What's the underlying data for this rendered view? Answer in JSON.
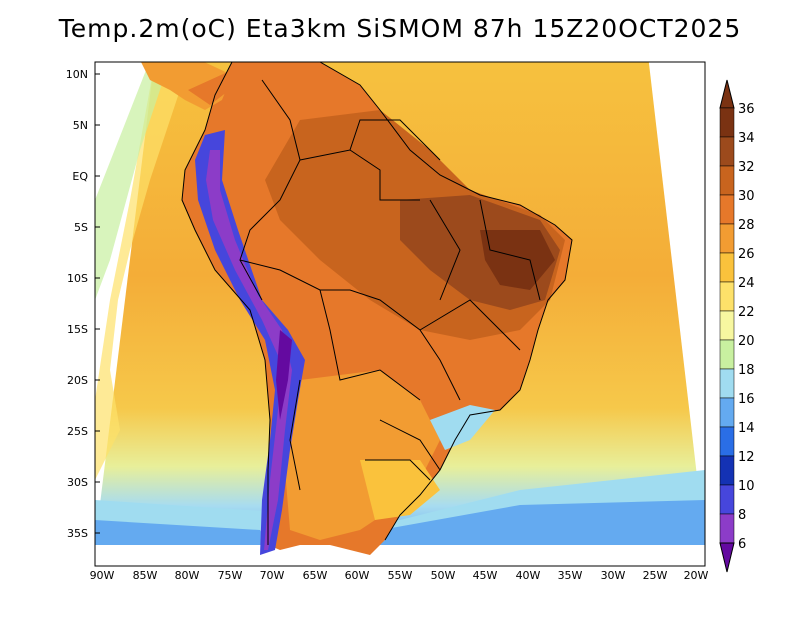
{
  "title": "Temp.2m(oC) Eta3km SiSMOM 87h 15Z20OCT2025",
  "lat_labels": [
    "10N",
    "5N",
    "EQ",
    "5S",
    "10S",
    "15S",
    "20S",
    "25S",
    "30S",
    "35S"
  ],
  "lon_labels": [
    "90W",
    "85W",
    "80W",
    "75W",
    "70W",
    "65W",
    "60W",
    "55W",
    "50W",
    "45W",
    "40W",
    "35W",
    "30W",
    "25W",
    "20W"
  ],
  "colorbar": {
    "labels": [
      "36",
      "34",
      "32",
      "30",
      "28",
      "26",
      "24",
      "22",
      "20",
      "18",
      "16",
      "14",
      "12",
      "10",
      "8",
      "6"
    ],
    "colors": [
      "#7a3212",
      "#9c4a1c",
      "#c8641e",
      "#e6782a",
      "#f29c32",
      "#fac23c",
      "#fde16a",
      "#f7f7a0",
      "#c8f0a0",
      "#a0dcf0",
      "#64aaf0",
      "#2a6ee6",
      "#1432b4",
      "#4646dc",
      "#8c3cc8",
      "#640aa0"
    ]
  }
}
